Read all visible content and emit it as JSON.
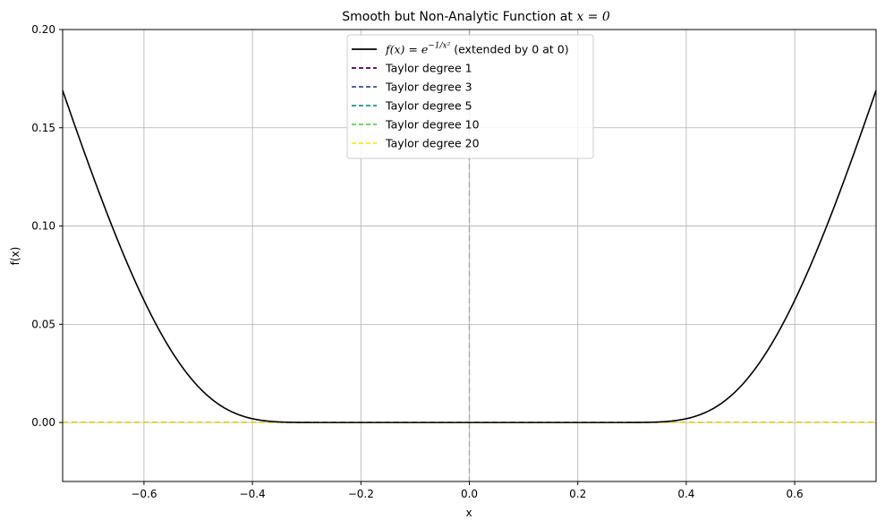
{
  "chart_data": {
    "type": "line",
    "title": "Smooth but Non-Analytic Function at",
    "title_math": "x = 0",
    "xlabel": "x",
    "ylabel": "f(x)",
    "xlim": [
      -0.75,
      0.75
    ],
    "ylim": [
      -0.03,
      0.2
    ],
    "xticks": [
      -0.6,
      -0.4,
      -0.2,
      0.0,
      0.2,
      0.4,
      0.6
    ],
    "xtick_labels": [
      "−0.6",
      "−0.4",
      "−0.2",
      "0.0",
      "0.2",
      "0.4",
      "0.6"
    ],
    "yticks": [
      0.0,
      0.05,
      0.1,
      0.15,
      0.2
    ],
    "ytick_labels": [
      "0.00",
      "0.05",
      "0.10",
      "0.15",
      "0.20"
    ],
    "grid": true,
    "legend_position": "top-center",
    "reference_line": {
      "x": 0.0,
      "color": "#aaaaaa",
      "style": "dashed"
    },
    "series": [
      {
        "name": "(extended by 0 at 0)",
        "name_math": "f(x) = e",
        "name_math_sup": "−1/x²",
        "color": "#000000",
        "style": "solid",
        "function": "exp(-1/x^2), 0 at x=0"
      },
      {
        "name": "Taylor degree 1",
        "color": "#440154",
        "style": "dashed",
        "x": [
          -0.75,
          0.75
        ],
        "y": [
          0,
          0
        ]
      },
      {
        "name": "Taylor degree 3",
        "color": "#3b528b",
        "style": "dashed",
        "x": [
          -0.75,
          0.75
        ],
        "y": [
          0,
          0
        ]
      },
      {
        "name": "Taylor degree 5",
        "color": "#21918c",
        "style": "dashed",
        "x": [
          -0.75,
          0.75
        ],
        "y": [
          0,
          0
        ]
      },
      {
        "name": "Taylor degree 10",
        "color": "#5ec962",
        "style": "dashed",
        "x": [
          -0.75,
          0.75
        ],
        "y": [
          0,
          0
        ]
      },
      {
        "name": "Taylor degree 20",
        "color": "#fde725",
        "style": "dashed",
        "x": [
          -0.75,
          0.75
        ],
        "y": [
          0,
          0
        ]
      }
    ]
  }
}
